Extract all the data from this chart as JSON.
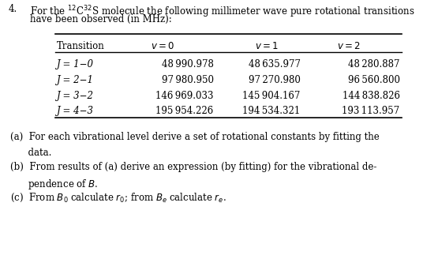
{
  "title_num": "4.",
  "title_line1": "For the $^{12}$C$^{32}$S molecule the following millimeter wave pure rotational transitions",
  "title_line2": "have been observed (in MHz):",
  "col_headers": [
    "Transition",
    "v = 0",
    "v = 1",
    "v = 2"
  ],
  "rows": [
    [
      "J = 1−0",
      "48 990.978",
      "48 635.977",
      "48 280.887"
    ],
    [
      "J = 2−1",
      "97 980.950",
      "97 270.980",
      "96 560.800"
    ],
    [
      "J = 3−2",
      "146 969.033",
      "145 904.167",
      "144 838.826"
    ],
    [
      "J = 4−3",
      "195 954.226",
      "194 534.321",
      "193 113.957"
    ]
  ],
  "part_a_1": "(a)  For each vibrational level derive a set of rotational constants by fitting the",
  "part_a_2": "      data.",
  "part_b_1": "(b)  From results of (a) derive an expression (by fitting) for the vibrational de-",
  "part_b_2": "      pendence of $B$.",
  "part_c": "(c)  From $B_0$ calculate $r_0$; from $B_e$ calculate $r_e$.",
  "bg_color": "#ffffff",
  "text_color": "#000000",
  "fs": 8.5
}
